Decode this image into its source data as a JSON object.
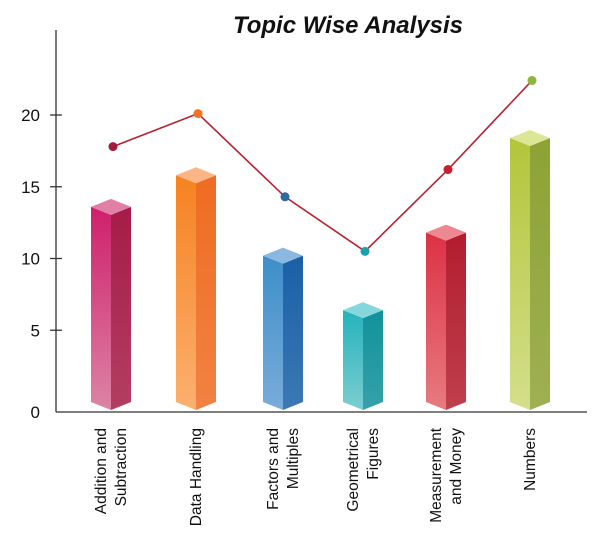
{
  "chart_data": {
    "type": "bar",
    "title": "Topic Wise Analysis",
    "xlabel": "",
    "ylabel": "",
    "categories": [
      [
        "Addition and",
        "Subtraction"
      ],
      [
        "Data Handling"
      ],
      [
        "Factors and",
        "Multiples"
      ],
      [
        "Geometrical",
        "Figures"
      ],
      [
        "Measurement",
        "and Money"
      ],
      [
        "Numbers"
      ]
    ],
    "series": [
      {
        "type": "bar",
        "values": [
          13.6,
          15.8,
          10.2,
          6.4,
          11.8,
          18.4
        ]
      },
      {
        "type": "line",
        "values": [
          17.8,
          20.1,
          14.3,
          10.5,
          16.2,
          22.4
        ]
      }
    ],
    "yticks": [
      0,
      5,
      10,
      15,
      20
    ],
    "ylim": [
      0,
      27
    ],
    "grid": false,
    "bar_colors": [
      {
        "front_top": "#cf1f6c",
        "front_bottom": "#dc84a4",
        "side": "#a51c47",
        "top": "#e27fa6"
      },
      {
        "front_top": "#f58220",
        "front_bottom": "#fbb070",
        "side": "#ef6c21",
        "top": "#fbb483"
      },
      {
        "front_top": "#3d8ec9",
        "front_bottom": "#79acd9",
        "side": "#1960a8",
        "top": "#8ab8e0"
      },
      {
        "front_top": "#24b3bb",
        "front_bottom": "#7ccdd1",
        "side": "#12919a",
        "top": "#86d7dc"
      },
      {
        "front_top": "#dd3144",
        "front_bottom": "#e77b80",
        "side": "#b31d2e",
        "top": "#ee8890"
      },
      {
        "front_top": "#b2c53a",
        "front_bottom": "#d4df8b",
        "side": "#8da235",
        "top": "#dbe797"
      }
    ],
    "point_colors": [
      "#a31c3c",
      "#f37221",
      "#2f67a7",
      "#17a2ae",
      "#c5202e",
      "#8cb63c"
    ],
    "line_color": "#b5232f"
  }
}
